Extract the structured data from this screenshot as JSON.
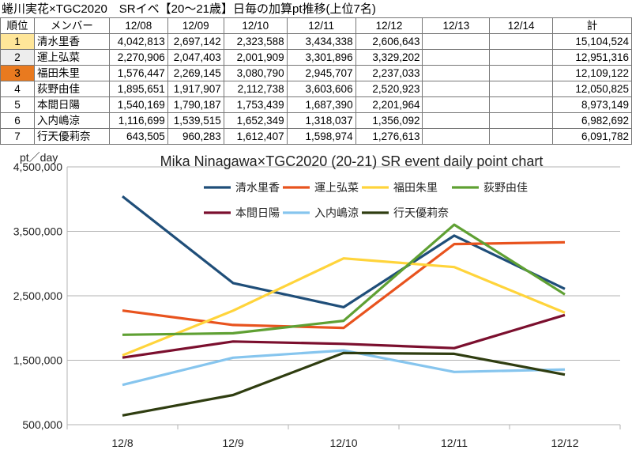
{
  "table": {
    "title": "蜷川実花×TGC2020　SRイベ【20～21歳】日毎の加算pt推移(上位7名)",
    "headers": [
      "順位",
      "メンバー",
      "12/08",
      "12/09",
      "12/10",
      "12/11",
      "12/12",
      "12/13",
      "12/14",
      "計"
    ],
    "rows": [
      {
        "rank": "1",
        "name": "清水里香",
        "values": [
          "4,042,813",
          "2,697,142",
          "2,323,588",
          "3,434,338",
          "2,606,643",
          "",
          ""
        ],
        "total": "15,104,524",
        "rank_color": "#FFE699"
      },
      {
        "rank": "2",
        "name": "運上弘菜",
        "values": [
          "2,270,906",
          "2,047,403",
          "2,001,909",
          "3,301,896",
          "3,329,202",
          "",
          ""
        ],
        "total": "12,951,316",
        "rank_color": "#EDEDED"
      },
      {
        "rank": "3",
        "name": "福田朱里",
        "values": [
          "1,576,447",
          "2,269,145",
          "3,080,790",
          "2,945,707",
          "2,237,033",
          "",
          ""
        ],
        "total": "12,109,122",
        "rank_color": "#E97A1F"
      },
      {
        "rank": "4",
        "name": "荻野由佳",
        "values": [
          "1,895,651",
          "1,917,907",
          "2,112,738",
          "3,603,606",
          "2,520,923",
          "",
          ""
        ],
        "total": "12,050,825",
        "rank_color": "#FFFFFF"
      },
      {
        "rank": "5",
        "name": "本間日陽",
        "values": [
          "1,540,169",
          "1,790,187",
          "1,753,439",
          "1,687,390",
          "2,201,964",
          "",
          ""
        ],
        "total": "8,973,149",
        "rank_color": "#FFFFFF"
      },
      {
        "rank": "6",
        "name": "入内嶋涼",
        "values": [
          "1,116,699",
          "1,539,515",
          "1,652,349",
          "1,318,037",
          "1,356,092",
          "",
          ""
        ],
        "total": "6,982,692",
        "rank_color": "#FFFFFF"
      },
      {
        "rank": "7",
        "name": "行天優莉奈",
        "values": [
          "643,505",
          "960,283",
          "1,612,407",
          "1,598,974",
          "1,276,613",
          "",
          ""
        ],
        "total": "6,091,782",
        "rank_color": "#FFFFFF"
      }
    ]
  },
  "chart_data": {
    "type": "line",
    "title": "Mika Ninagawa×TGC2020 (20-21) SR event daily point chart",
    "ylabel": "pt／day",
    "xlabel": "",
    "categories": [
      "12/8",
      "12/9",
      "12/10",
      "12/11",
      "12/12"
    ],
    "ylim": [
      500000,
      4500000
    ],
    "yticks": [
      500000,
      1500000,
      2500000,
      3500000,
      4500000
    ],
    "ytick_labels": [
      "500,000",
      "1,500,000",
      "2,500,000",
      "3,500,000",
      "4,500,000"
    ],
    "grid": "horizontal",
    "legend_position": "top-right",
    "series": [
      {
        "name": "清水里香",
        "color": "#1F4E79",
        "values": [
          4042813,
          2697142,
          2323588,
          3434338,
          2606643
        ]
      },
      {
        "name": "運上弘菜",
        "color": "#E8531E",
        "values": [
          2270906,
          2047403,
          2001909,
          3301896,
          3329202
        ]
      },
      {
        "name": "福田朱里",
        "color": "#FFD43B",
        "values": [
          1576447,
          2269145,
          3080790,
          2945707,
          2237033
        ]
      },
      {
        "name": "荻野由佳",
        "color": "#5FA033",
        "values": [
          1895651,
          1917907,
          2112738,
          3603606,
          2520923
        ]
      },
      {
        "name": "本間日陽",
        "color": "#7B0F2E",
        "values": [
          1540169,
          1790187,
          1753439,
          1687390,
          2201964
        ]
      },
      {
        "name": "入内嶋涼",
        "color": "#86C5EE",
        "values": [
          1116699,
          1539515,
          1652349,
          1318037,
          1356092
        ]
      },
      {
        "name": "行天優莉奈",
        "color": "#2F3D10",
        "values": [
          643505,
          960283,
          1612407,
          1598974,
          1276613
        ]
      }
    ]
  }
}
